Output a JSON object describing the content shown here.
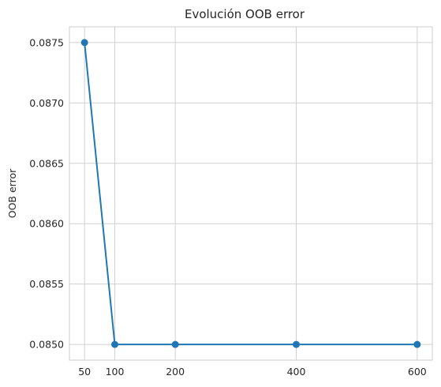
{
  "chart_data": {
    "type": "line",
    "title": "Evolución OOB error",
    "xlabel": "",
    "ylabel": "OOB error",
    "x": [
      50,
      100,
      200,
      400,
      600
    ],
    "series": [
      {
        "values": [
          0.0875,
          0.085,
          0.085,
          0.085,
          0.085
        ]
      }
    ],
    "xticks": [
      "50",
      "100",
      "200",
      "400",
      "600"
    ],
    "yticks": [
      "0.0850",
      "0.0855",
      "0.0860",
      "0.0865",
      "0.0870",
      "0.0875"
    ],
    "xlim": [
      25,
      625
    ],
    "ylim": [
      0.08487,
      0.08763
    ],
    "grid": true,
    "line_color": "#1f77b4"
  }
}
